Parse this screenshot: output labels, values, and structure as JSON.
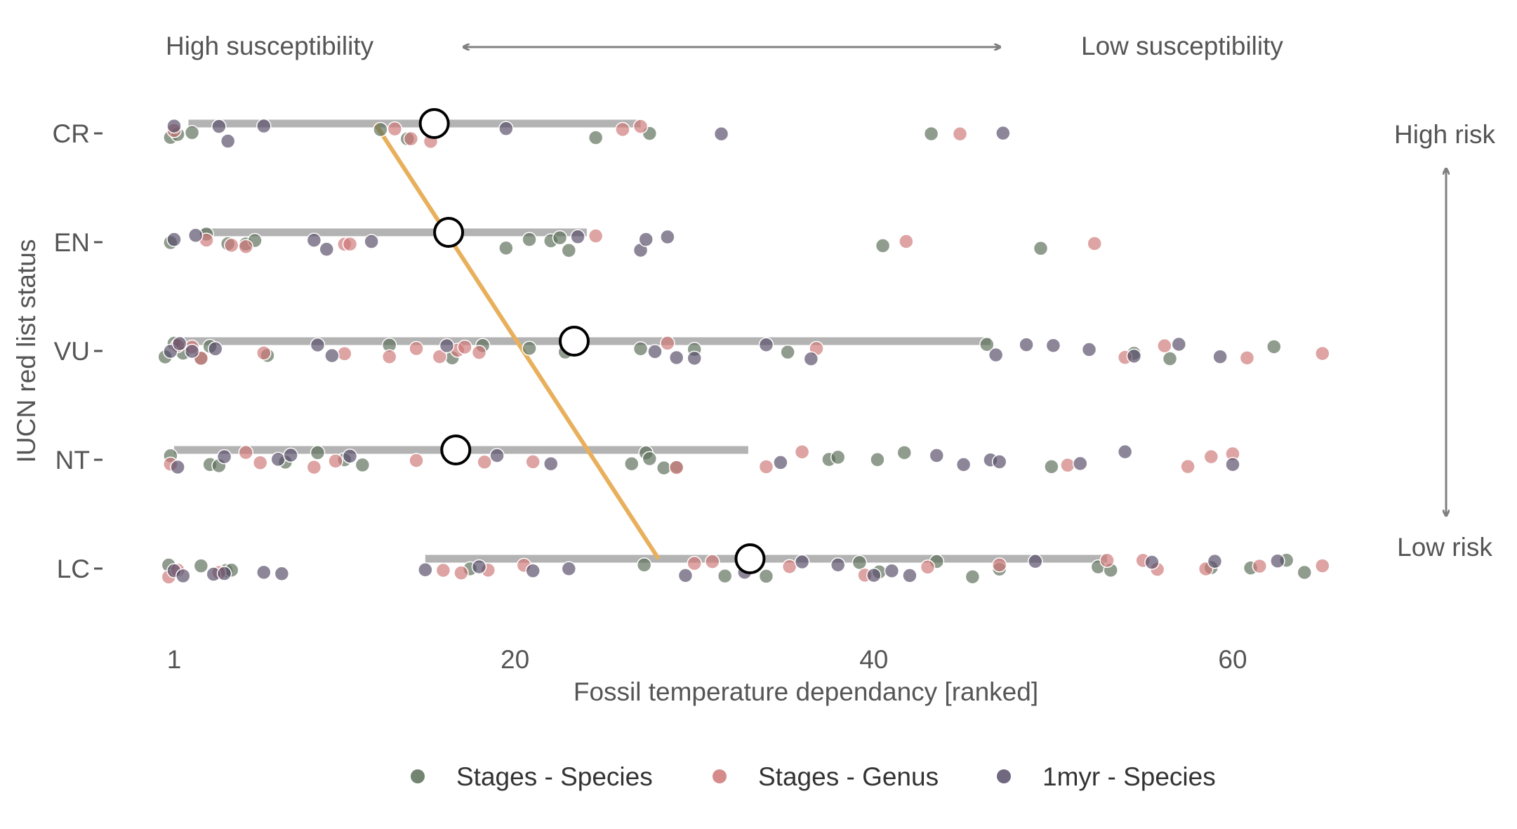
{
  "chart_data": {
    "type": "scatter",
    "title": "",
    "xlabel": "Fossil temperature dependancy [ranked]",
    "ylabel": "IUCN red list status",
    "x_ticks": [
      1,
      20,
      40,
      60
    ],
    "y_categories": [
      "CR",
      "EN",
      "VU",
      "NT",
      "LC"
    ],
    "xlim": [
      0,
      66
    ],
    "grid": false,
    "legend_position": "bottom",
    "annotations": {
      "top_left": "High susceptibility",
      "top_right": "Low susceptibility",
      "right_top": "High risk",
      "right_bottom": "Low risk"
    },
    "colors": {
      "Stages - Species": "#5b6e58",
      "Stages - Genus": "#cf7777",
      "1myr - Species": "#574d68",
      "median_marker": "#000000",
      "range_bar": "#b3b3b3",
      "trend_line": "#e8b05c",
      "annotation_arrow": "#808080"
    },
    "medians": [
      {
        "category": "CR",
        "x": 15.5
      },
      {
        "category": "EN",
        "x": 16.3
      },
      {
        "category": "VU",
        "x": 23.3
      },
      {
        "category": "NT",
        "x": 16.7
      },
      {
        "category": "LC",
        "x": 33.1
      }
    ],
    "ranges": [
      {
        "category": "CR",
        "low": 1.8,
        "high": 27.0
      },
      {
        "category": "EN",
        "low": 2.5,
        "high": 24.0
      },
      {
        "category": "VU",
        "low": 1.0,
        "high": 46.5
      },
      {
        "category": "NT",
        "low": 1.0,
        "high": 33.0
      },
      {
        "category": "LC",
        "low": 15.0,
        "high": 53.0
      }
    ],
    "trend_line": {
      "x_start": 12.2,
      "category_start": "CR",
      "x_end": 28.0,
      "category_end": "LC"
    },
    "series": [
      {
        "name": "Stages - Species",
        "points": [
          [
            "CR",
            0.8
          ],
          [
            "CR",
            1.2
          ],
          [
            "CR",
            2.0
          ],
          [
            "CR",
            12.5
          ],
          [
            "CR",
            14.0
          ],
          [
            "CR",
            24.5
          ],
          [
            "CR",
            27.5
          ],
          [
            "CR",
            43.2
          ],
          [
            "EN",
            0.8
          ],
          [
            "EN",
            2.8
          ],
          [
            "EN",
            4.0
          ],
          [
            "EN",
            5.0
          ],
          [
            "EN",
            5.5
          ],
          [
            "EN",
            19.5
          ],
          [
            "EN",
            20.8
          ],
          [
            "EN",
            22.0
          ],
          [
            "EN",
            22.5
          ],
          [
            "EN",
            23.0
          ],
          [
            "EN",
            40.5
          ],
          [
            "EN",
            49.3
          ],
          [
            "VU",
            0.5
          ],
          [
            "VU",
            1.0
          ],
          [
            "VU",
            1.5
          ],
          [
            "VU",
            2.5
          ],
          [
            "VU",
            3.0
          ],
          [
            "VU",
            6.2
          ],
          [
            "VU",
            13.0
          ],
          [
            "VU",
            16.5
          ],
          [
            "VU",
            18.2
          ],
          [
            "VU",
            20.8
          ],
          [
            "VU",
            22.8
          ],
          [
            "VU",
            27.0
          ],
          [
            "VU",
            30.0
          ],
          [
            "VU",
            35.2
          ],
          [
            "VU",
            46.3
          ],
          [
            "VU",
            54.5
          ],
          [
            "VU",
            56.5
          ],
          [
            "VU",
            62.3
          ],
          [
            "NT",
            0.8
          ],
          [
            "NT",
            3.0
          ],
          [
            "NT",
            3.5
          ],
          [
            "NT",
            7.2
          ],
          [
            "NT",
            9.0
          ],
          [
            "NT",
            10.5
          ],
          [
            "NT",
            11.5
          ],
          [
            "NT",
            26.5
          ],
          [
            "NT",
            27.3
          ],
          [
            "NT",
            27.5
          ],
          [
            "NT",
            28.3
          ],
          [
            "NT",
            29.0
          ],
          [
            "NT",
            37.5
          ],
          [
            "NT",
            38.0
          ],
          [
            "NT",
            40.2
          ],
          [
            "NT",
            41.7
          ],
          [
            "NT",
            49.9
          ],
          [
            "LC",
            0.7
          ],
          [
            "LC",
            2.5
          ],
          [
            "LC",
            3.9
          ],
          [
            "LC",
            4.2
          ],
          [
            "LC",
            17.5
          ],
          [
            "LC",
            27.2
          ],
          [
            "LC",
            31.7
          ],
          [
            "LC",
            34.0
          ],
          [
            "LC",
            39.2
          ],
          [
            "LC",
            40.3
          ],
          [
            "LC",
            43.5
          ],
          [
            "LC",
            45.5
          ],
          [
            "LC",
            47.0
          ],
          [
            "LC",
            52.5
          ],
          [
            "LC",
            53.2
          ],
          [
            "LC",
            58.8
          ],
          [
            "LC",
            61.0
          ],
          [
            "LC",
            63.0
          ],
          [
            "LC",
            64.0
          ]
        ]
      },
      {
        "name": "Stages - Genus",
        "points": [
          [
            "CR",
            1.0
          ],
          [
            "CR",
            13.3
          ],
          [
            "CR",
            14.2
          ],
          [
            "CR",
            15.3
          ],
          [
            "CR",
            26.0
          ],
          [
            "CR",
            27.0
          ],
          [
            "CR",
            44.8
          ],
          [
            "EN",
            2.8
          ],
          [
            "EN",
            4.2
          ],
          [
            "EN",
            5.0
          ],
          [
            "EN",
            10.5
          ],
          [
            "EN",
            10.8
          ],
          [
            "EN",
            24.5
          ],
          [
            "EN",
            41.8
          ],
          [
            "EN",
            52.3
          ],
          [
            "VU",
            1.2
          ],
          [
            "VU",
            2.0
          ],
          [
            "VU",
            2.5
          ],
          [
            "VU",
            6.0
          ],
          [
            "VU",
            10.5
          ],
          [
            "VU",
            13.0
          ],
          [
            "VU",
            14.5
          ],
          [
            "VU",
            15.8
          ],
          [
            "VU",
            16.8
          ],
          [
            "VU",
            17.2
          ],
          [
            "VU",
            18.0
          ],
          [
            "VU",
            28.5
          ],
          [
            "VU",
            36.8
          ],
          [
            "VU",
            54.0
          ],
          [
            "VU",
            56.2
          ],
          [
            "VU",
            60.8
          ],
          [
            "VU",
            65.0
          ],
          [
            "NT",
            0.8
          ],
          [
            "NT",
            5.0
          ],
          [
            "NT",
            5.8
          ],
          [
            "NT",
            8.8
          ],
          [
            "NT",
            10.0
          ],
          [
            "NT",
            14.5
          ],
          [
            "NT",
            18.3
          ],
          [
            "NT",
            21.0
          ],
          [
            "NT",
            29.0
          ],
          [
            "NT",
            34.0
          ],
          [
            "NT",
            36.0
          ],
          [
            "NT",
            50.8
          ],
          [
            "NT",
            57.5
          ],
          [
            "NT",
            58.8
          ],
          [
            "NT",
            60.0
          ],
          [
            "LC",
            0.7
          ],
          [
            "LC",
            1.2
          ],
          [
            "LC",
            3.5
          ],
          [
            "LC",
            16.0
          ],
          [
            "LC",
            17.0
          ],
          [
            "LC",
            18.5
          ],
          [
            "LC",
            20.5
          ],
          [
            "LC",
            30.0
          ],
          [
            "LC",
            31.0
          ],
          [
            "LC",
            35.3
          ],
          [
            "LC",
            39.5
          ],
          [
            "LC",
            43.0
          ],
          [
            "LC",
            47.0
          ],
          [
            "LC",
            53.0
          ],
          [
            "LC",
            55.0
          ],
          [
            "LC",
            55.8
          ],
          [
            "LC",
            58.5
          ],
          [
            "LC",
            61.5
          ],
          [
            "LC",
            65.0
          ]
        ]
      },
      {
        "name": "1myr - Species",
        "points": [
          [
            "CR",
            1.0
          ],
          [
            "CR",
            3.5
          ],
          [
            "CR",
            4.0
          ],
          [
            "CR",
            6.0
          ],
          [
            "CR",
            19.5
          ],
          [
            "CR",
            31.5
          ],
          [
            "CR",
            47.2
          ],
          [
            "EN",
            1.0
          ],
          [
            "EN",
            2.2
          ],
          [
            "EN",
            8.8
          ],
          [
            "EN",
            9.5
          ],
          [
            "EN",
            12.0
          ],
          [
            "EN",
            16.0
          ],
          [
            "EN",
            23.5
          ],
          [
            "EN",
            27.0
          ],
          [
            "EN",
            27.3
          ],
          [
            "EN",
            28.5
          ],
          [
            "VU",
            0.8
          ],
          [
            "VU",
            1.3
          ],
          [
            "VU",
            2.0
          ],
          [
            "VU",
            3.3
          ],
          [
            "VU",
            9.0
          ],
          [
            "VU",
            9.8
          ],
          [
            "VU",
            16.2
          ],
          [
            "VU",
            27.8
          ],
          [
            "VU",
            29.0
          ],
          [
            "VU",
            30.0
          ],
          [
            "VU",
            34.0
          ],
          [
            "VU",
            36.5
          ],
          [
            "VU",
            46.8
          ],
          [
            "VU",
            48.5
          ],
          [
            "VU",
            50.0
          ],
          [
            "VU",
            52.0
          ],
          [
            "VU",
            54.5
          ],
          [
            "VU",
            57.0
          ],
          [
            "VU",
            59.3
          ],
          [
            "NT",
            1.2
          ],
          [
            "NT",
            3.8
          ],
          [
            "NT",
            6.8
          ],
          [
            "NT",
            7.5
          ],
          [
            "NT",
            10.8
          ],
          [
            "NT",
            19.0
          ],
          [
            "NT",
            22.0
          ],
          [
            "NT",
            34.8
          ],
          [
            "NT",
            43.5
          ],
          [
            "NT",
            45.0
          ],
          [
            "NT",
            46.5
          ],
          [
            "NT",
            47.0
          ],
          [
            "NT",
            51.5
          ],
          [
            "NT",
            54.0
          ],
          [
            "NT",
            60.0
          ],
          [
            "LC",
            1.0
          ],
          [
            "LC",
            1.5
          ],
          [
            "LC",
            3.2
          ],
          [
            "LC",
            3.8
          ],
          [
            "LC",
            6.0
          ],
          [
            "LC",
            7.0
          ],
          [
            "LC",
            15.0
          ],
          [
            "LC",
            18.0
          ],
          [
            "LC",
            21.0
          ],
          [
            "LC",
            23.0
          ],
          [
            "LC",
            29.5
          ],
          [
            "LC",
            32.8
          ],
          [
            "LC",
            36.0
          ],
          [
            "LC",
            38.0
          ],
          [
            "LC",
            40.0
          ],
          [
            "LC",
            41.0
          ],
          [
            "LC",
            42.0
          ],
          [
            "LC",
            49.0
          ],
          [
            "LC",
            55.5
          ],
          [
            "LC",
            59.0
          ],
          [
            "LC",
            62.5
          ]
        ]
      }
    ]
  }
}
